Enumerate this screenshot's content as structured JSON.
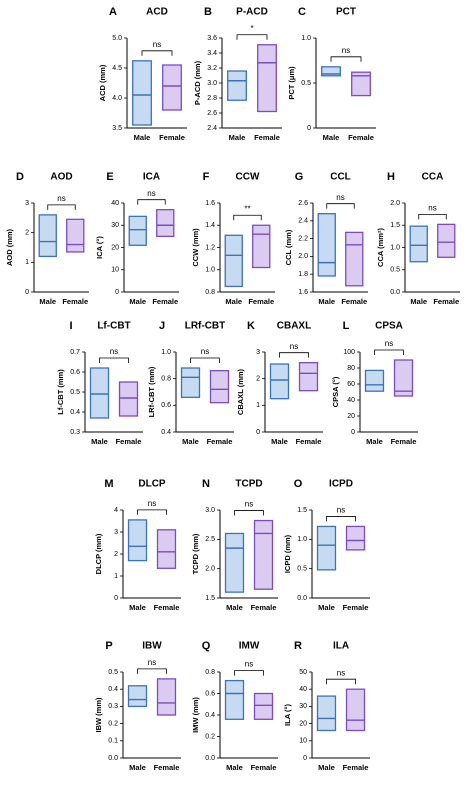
{
  "chart_data": [
    {
      "type": "box",
      "panel": "A",
      "title": "ACD",
      "y_label": "ACD (mm)",
      "categories": [
        "Male",
        "Female"
      ],
      "low": [
        3.55,
        3.8
      ],
      "high": [
        4.62,
        4.55
      ],
      "median": [
        4.05,
        4.2
      ],
      "ylim": [
        3.5,
        5.0
      ],
      "yticks": [
        3.5,
        {
          "value": 4,
          "label": "4.0"
        },
        4.5,
        {
          "value": 5,
          "label": "5.0"
        }
      ],
      "significance": "ns",
      "colors": [
        "#3b73b9",
        "#7a4cc2"
      ],
      "fills": [
        "#c6dbf1",
        "#dccbf0"
      ]
    },
    {
      "type": "box",
      "panel": "B",
      "title": "P-ACD",
      "y_label": "P-ACD (mm)",
      "categories": [
        "Male",
        "Female"
      ],
      "low": [
        2.77,
        2.62
      ],
      "high": [
        3.16,
        3.51
      ],
      "median": [
        3.03,
        3.27
      ],
      "ylim": [
        2.4,
        3.6
      ],
      "yticks": [
        2.4,
        2.6,
        2.8,
        {
          "value": 3,
          "label": "3.0"
        },
        3.2,
        3.4,
        3.6
      ],
      "significance": "*",
      "colors": [
        "#3b73b9",
        "#7a4cc2"
      ],
      "fills": [
        "#c6dbf1",
        "#dccbf0"
      ]
    },
    {
      "type": "box",
      "panel": "C",
      "title": "PCT",
      "y_label": "PCT (μm)",
      "categories": [
        "Male",
        "Female"
      ],
      "low": [
        0.58,
        0.36
      ],
      "high": [
        0.68,
        0.62
      ],
      "median": [
        0.6,
        0.58
      ],
      "ylim": [
        0,
        1
      ],
      "yticks": [
        0,
        0.5,
        {
          "value": 1,
          "label": "1.0"
        }
      ],
      "significance": "ns",
      "colors": [
        "#3b73b9",
        "#7a4cc2"
      ],
      "fills": [
        "#c6dbf1",
        "#dccbf0"
      ]
    },
    {
      "type": "box",
      "panel": "D",
      "title": "AOD",
      "y_label": "AOD (mm)",
      "categories": [
        "Male",
        "Female"
      ],
      "low": [
        1.2,
        1.35
      ],
      "high": [
        2.6,
        2.45
      ],
      "median": [
        1.7,
        1.6
      ],
      "ylim": [
        0,
        3
      ],
      "yticks": [
        0,
        1,
        2,
        3
      ],
      "significance": "ns",
      "colors": [
        "#3b73b9",
        "#7a4cc2"
      ],
      "fills": [
        "#c6dbf1",
        "#dccbf0"
      ]
    },
    {
      "type": "box",
      "panel": "E",
      "title": "ICA",
      "y_label": "ICA (°)",
      "categories": [
        "Male",
        "Female"
      ],
      "low": [
        21,
        25
      ],
      "high": [
        34,
        37
      ],
      "median": [
        28,
        30
      ],
      "ylim": [
        0,
        40
      ],
      "yticks": [
        0,
        10,
        20,
        30,
        40
      ],
      "significance": "ns",
      "colors": [
        "#3b73b9",
        "#7a4cc2"
      ],
      "fills": [
        "#c6dbf1",
        "#dccbf0"
      ]
    },
    {
      "type": "box",
      "panel": "F",
      "title": "CCW",
      "y_label": "CCW (mm)",
      "categories": [
        "Male",
        "Female"
      ],
      "low": [
        0.85,
        1.02
      ],
      "high": [
        1.31,
        1.4
      ],
      "median": [
        1.13,
        1.32
      ],
      "ylim": [
        0.8,
        1.6
      ],
      "yticks": [
        0.8,
        {
          "value": 1,
          "label": "1.0"
        },
        1.2,
        1.4,
        1.6
      ],
      "significance": "**",
      "colors": [
        "#3b73b9",
        "#7a4cc2"
      ],
      "fills": [
        "#c6dbf1",
        "#dccbf0"
      ]
    },
    {
      "type": "box",
      "panel": "G",
      "title": "CCL",
      "y_label": "CCL (mm)",
      "categories": [
        "Male",
        "Female"
      ],
      "low": [
        1.78,
        1.67
      ],
      "high": [
        2.48,
        2.27
      ],
      "median": [
        1.93,
        2.13
      ],
      "ylim": [
        1.6,
        2.6
      ],
      "yticks": [
        1.6,
        1.8,
        {
          "value": 2,
          "label": "2.0"
        },
        2.2,
        2.4,
        2.6
      ],
      "significance": "ns",
      "colors": [
        "#3b73b9",
        "#7a4cc2"
      ],
      "fills": [
        "#c6dbf1",
        "#dccbf0"
      ]
    },
    {
      "type": "box",
      "panel": "H",
      "title": "CCA",
      "y_label": "CCA (mm²)",
      "categories": [
        "Male",
        "Female"
      ],
      "low": [
        0.68,
        0.78
      ],
      "high": [
        1.48,
        1.52
      ],
      "median": [
        1.05,
        1.12
      ],
      "ylim": [
        0,
        2
      ],
      "yticks": [
        {
          "value": 0,
          "label": "0.0"
        },
        0.5,
        {
          "value": 1,
          "label": "1.0"
        },
        1.5,
        {
          "value": 2,
          "label": "2.0"
        }
      ],
      "significance": "ns",
      "colors": [
        "#3b73b9",
        "#7a4cc2"
      ],
      "fills": [
        "#c6dbf1",
        "#dccbf0"
      ]
    },
    {
      "type": "box",
      "panel": "I",
      "title": "Lf-CBT",
      "y_label": "Lf-CBT (mm)",
      "categories": [
        "Male",
        "Female"
      ],
      "low": [
        0.37,
        0.38
      ],
      "high": [
        0.62,
        0.55
      ],
      "median": [
        0.49,
        0.47
      ],
      "ylim": [
        0.3,
        0.7
      ],
      "yticks": [
        0.3,
        0.4,
        0.5,
        0.6,
        0.7
      ],
      "significance": "ns",
      "colors": [
        "#3b73b9",
        "#7a4cc2"
      ],
      "fills": [
        "#c6dbf1",
        "#dccbf0"
      ]
    },
    {
      "type": "box",
      "panel": "J",
      "title": "LRf-CBT",
      "y_label": "LRf-CBT (mm)",
      "categories": [
        "Male",
        "Female"
      ],
      "low": [
        0.66,
        0.62
      ],
      "high": [
        0.88,
        0.86
      ],
      "median": [
        0.81,
        0.72
      ],
      "ylim": [
        0.4,
        1.0
      ],
      "yticks": [
        0.4,
        0.6,
        0.8,
        {
          "value": 1,
          "label": "1.0"
        }
      ],
      "significance": "ns",
      "colors": [
        "#3b73b9",
        "#7a4cc2"
      ],
      "fills": [
        "#c6dbf1",
        "#dccbf0"
      ]
    },
    {
      "type": "box",
      "panel": "K",
      "title": "CBAXL",
      "y_label": "CBAXL (mm)",
      "categories": [
        "Male",
        "Female"
      ],
      "low": [
        1.25,
        1.55
      ],
      "high": [
        2.55,
        2.6
      ],
      "median": [
        1.95,
        2.2
      ],
      "ylim": [
        0,
        3
      ],
      "yticks": [
        0,
        1,
        2,
        3
      ],
      "significance": "ns",
      "colors": [
        "#3b73b9",
        "#7a4cc2"
      ],
      "fills": [
        "#c6dbf1",
        "#dccbf0"
      ]
    },
    {
      "type": "box",
      "panel": "L",
      "title": "CPSA",
      "y_label": "CPSA (°)",
      "categories": [
        "Male",
        "Female"
      ],
      "low": [
        51,
        45
      ],
      "high": [
        77,
        90
      ],
      "median": [
        59,
        51
      ],
      "ylim": [
        0,
        100
      ],
      "yticks": [
        0,
        20,
        40,
        60,
        80,
        100
      ],
      "significance": "ns",
      "colors": [
        "#3b73b9",
        "#7a4cc2"
      ],
      "fills": [
        "#c6dbf1",
        "#dccbf0"
      ]
    },
    {
      "type": "box",
      "panel": "M",
      "title": "DLCP",
      "y_label": "DLCP (mm)",
      "categories": [
        "Male",
        "Female"
      ],
      "low": [
        1.7,
        1.35
      ],
      "high": [
        3.55,
        3.1
      ],
      "median": [
        2.35,
        2.1
      ],
      "ylim": [
        0,
        4
      ],
      "yticks": [
        0,
        1,
        2,
        3,
        4
      ],
      "significance": "ns",
      "colors": [
        "#3b73b9",
        "#7a4cc2"
      ],
      "fills": [
        "#c6dbf1",
        "#dccbf0"
      ]
    },
    {
      "type": "box",
      "panel": "N",
      "title": "TCPD",
      "y_label": "TCPD (mm)",
      "categories": [
        "Male",
        "Female"
      ],
      "low": [
        1.6,
        1.65
      ],
      "high": [
        2.6,
        2.82
      ],
      "median": [
        2.35,
        2.6
      ],
      "ylim": [
        1.5,
        3.0
      ],
      "yticks": [
        1.5,
        {
          "value": 2,
          "label": "2.0"
        },
        2.5,
        {
          "value": 3,
          "label": "3.0"
        }
      ],
      "significance": "ns",
      "colors": [
        "#3b73b9",
        "#7a4cc2"
      ],
      "fills": [
        "#c6dbf1",
        "#dccbf0"
      ]
    },
    {
      "type": "box",
      "panel": "O",
      "title": "ICPD",
      "y_label": "ICPD (mm)",
      "categories": [
        "Male",
        "Female"
      ],
      "low": [
        0.48,
        0.82
      ],
      "high": [
        1.22,
        1.22
      ],
      "median": [
        0.9,
        0.98
      ],
      "ylim": [
        0,
        1.5
      ],
      "yticks": [
        {
          "value": 0,
          "label": "0.0"
        },
        0.5,
        {
          "value": 1,
          "label": "1.0"
        },
        1.5
      ],
      "significance": "ns",
      "colors": [
        "#3b73b9",
        "#7a4cc2"
      ],
      "fills": [
        "#c6dbf1",
        "#dccbf0"
      ]
    },
    {
      "type": "box",
      "panel": "P",
      "title": "IBW",
      "y_label": "IBW (mm)",
      "categories": [
        "Male",
        "Female"
      ],
      "low": [
        0.3,
        0.25
      ],
      "high": [
        0.42,
        0.46
      ],
      "median": [
        0.34,
        0.32
      ],
      "ylim": [
        0,
        0.5
      ],
      "yticks": [
        {
          "value": 0,
          "label": "0.0"
        },
        0.1,
        0.2,
        0.3,
        0.4,
        0.5
      ],
      "significance": "ns",
      "colors": [
        "#3b73b9",
        "#7a4cc2"
      ],
      "fills": [
        "#c6dbf1",
        "#dccbf0"
      ]
    },
    {
      "type": "box",
      "panel": "Q",
      "title": "IMW",
      "y_label": "IMW (mm)",
      "categories": [
        "Male",
        "Female"
      ],
      "low": [
        0.36,
        0.36
      ],
      "high": [
        0.72,
        0.6
      ],
      "median": [
        0.6,
        0.49
      ],
      "ylim": [
        0,
        0.8
      ],
      "yticks": [
        {
          "value": 0,
          "label": "0.0"
        },
        0.2,
        0.4,
        0.6,
        0.8
      ],
      "significance": "ns",
      "colors": [
        "#3b73b9",
        "#7a4cc2"
      ],
      "fills": [
        "#c6dbf1",
        "#dccbf0"
      ]
    },
    {
      "type": "box",
      "panel": "R",
      "title": "ILA",
      "y_label": "ILA (°)",
      "categories": [
        "Male",
        "Female"
      ],
      "low": [
        16,
        16
      ],
      "high": [
        36,
        40
      ],
      "median": [
        23,
        22
      ],
      "ylim": [
        0,
        50
      ],
      "yticks": [
        0,
        10,
        20,
        30,
        40,
        50
      ],
      "significance": "ns",
      "colors": [
        "#3b73b9",
        "#7a4cc2"
      ],
      "fills": [
        "#c6dbf1",
        "#dccbf0"
      ]
    }
  ]
}
